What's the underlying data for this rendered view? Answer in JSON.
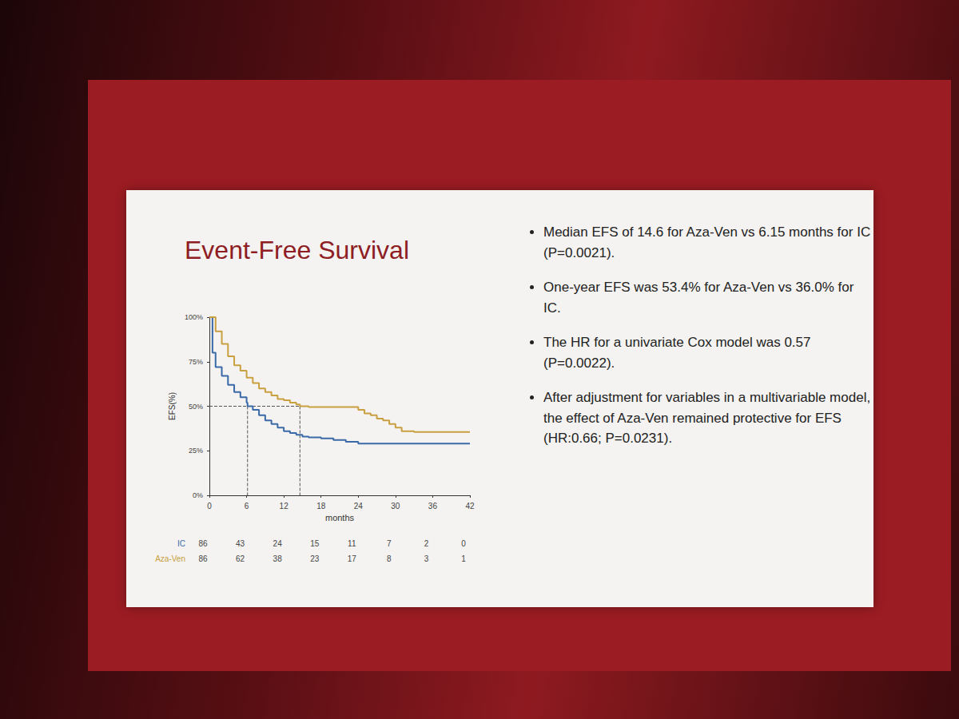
{
  "chart_data": {
    "type": "step",
    "title": "Event-Free Survival",
    "x_label": "months",
    "y_label": "EFS(%)",
    "xlim": [
      0,
      42
    ],
    "xticks": [
      0,
      6,
      12,
      18,
      24,
      30,
      36,
      42
    ],
    "ylim": [
      0,
      100
    ],
    "yticks": [
      {
        "value": 0,
        "label": "0%"
      },
      {
        "value": 25,
        "label": "25%"
      },
      {
        "value": 50,
        "label": "50%"
      },
      {
        "value": 75,
        "label": "75%"
      },
      {
        "value": 100,
        "label": "100%"
      }
    ],
    "grid": false,
    "series": [
      {
        "name": "IC",
        "color": "#3a6aa8",
        "median": 6.15,
        "x": [
          0,
          0.5,
          1,
          2,
          3,
          4,
          5,
          6,
          6.15,
          7,
          8,
          9,
          10,
          11,
          12,
          13,
          14,
          15,
          16,
          18,
          20,
          22,
          24,
          42
        ],
        "values": [
          100,
          80,
          72,
          67,
          62,
          58,
          55,
          52,
          50,
          48,
          45,
          42,
          40,
          38,
          36,
          35,
          34,
          33,
          32.5,
          32,
          31,
          30,
          29,
          29
        ]
      },
      {
        "name": "Aza-Ven",
        "color": "#c9a040",
        "median": 14.6,
        "x": [
          0,
          1,
          2,
          3,
          4,
          5,
          6,
          7,
          8,
          9,
          10,
          11,
          12,
          13,
          14,
          14.6,
          16,
          20,
          24,
          25,
          26,
          27,
          28,
          29,
          30,
          31,
          33,
          42
        ],
        "values": [
          100,
          92,
          85,
          78,
          73,
          70,
          66,
          63,
          60,
          58,
          56,
          54,
          53.4,
          52,
          51,
          50,
          49.5,
          49.5,
          48,
          46,
          45,
          43,
          42,
          40,
          38,
          36,
          35.5,
          35.5
        ]
      }
    ],
    "reference_level": 50,
    "risk_table": {
      "times": [
        0,
        6,
        12,
        18,
        24,
        30,
        36,
        42
      ],
      "rows": [
        {
          "name": "IC",
          "values": [
            86,
            43,
            24,
            15,
            11,
            7,
            2,
            0
          ]
        },
        {
          "name": "Aza-Ven",
          "values": [
            86,
            62,
            38,
            23,
            17,
            8,
            3,
            1
          ]
        }
      ]
    },
    "annotations": [
      "Median EFS of 14.6 for Aza-Ven vs 6.15 months for IC (P=0.0021).",
      "One-year EFS was 53.4% for Aza-Ven vs 36.0% for IC.",
      "The HR for a univariate Cox model was 0.57 (P=0.0022).",
      "After adjustment for variables in a multivariable model, the effect of Aza-Ven remained protective for EFS (HR:0.66; P=0.0231)."
    ]
  }
}
